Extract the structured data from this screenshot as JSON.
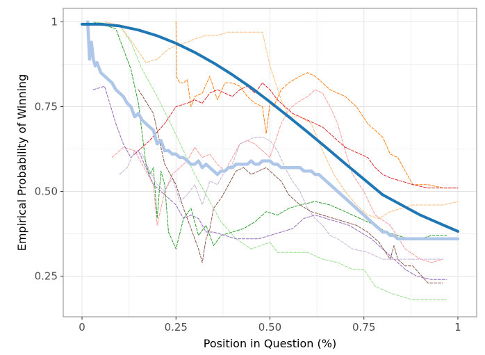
{
  "chart_data": {
    "type": "line",
    "xlabel": "Position in Question (%)",
    "ylabel": "Empirical Probability of Winning",
    "xlim": [
      -0.05,
      1.05
    ],
    "ylim": [
      0.13,
      1.04
    ],
    "xticks": [
      0,
      0.25,
      0.5,
      0.75,
      1
    ],
    "xtick_labels": [
      "0",
      "0.25",
      "0.50",
      "0.75",
      "1"
    ],
    "yticks": [
      0.25,
      0.5,
      0.75,
      1
    ],
    "ytick_labels": [
      "0.25",
      "0.50",
      "0.75",
      "1"
    ],
    "grid": true,
    "series": [
      {
        "style": "dashed",
        "color": "#2ca02c",
        "x": [
          0.03,
          0.09,
          0.13,
          0.15,
          0.17,
          0.18,
          0.19,
          0.2,
          0.21,
          0.22,
          0.23,
          0.25,
          0.27,
          0.29,
          0.31,
          0.33,
          0.35,
          0.37,
          0.4,
          0.43,
          0.46,
          0.49,
          0.52,
          0.55,
          0.58,
          0.62,
          0.66,
          0.7,
          0.74,
          0.78,
          0.81,
          0.84,
          0.87,
          0.9,
          0.93,
          0.97
        ],
        "y": [
          1.0,
          0.98,
          0.86,
          0.76,
          0.58,
          0.55,
          0.57,
          0.42,
          0.56,
          0.52,
          0.38,
          0.33,
          0.42,
          0.45,
          0.37,
          0.4,
          0.34,
          0.37,
          0.38,
          0.39,
          0.41,
          0.44,
          0.43,
          0.45,
          0.46,
          0.47,
          0.46,
          0.44,
          0.42,
          0.4,
          0.38,
          0.37,
          0.36,
          0.36,
          0.37,
          0.37
        ]
      },
      {
        "style": "dashed",
        "color": "#98df8a",
        "x": [
          0.03,
          0.1,
          0.13,
          0.16,
          0.2,
          0.24,
          0.27,
          0.3,
          0.34,
          0.37,
          0.41,
          0.45,
          0.5,
          0.52,
          0.56,
          0.6,
          0.64,
          0.68,
          0.72,
          0.75,
          0.78,
          0.82,
          0.85,
          0.88,
          0.9,
          0.92,
          0.95,
          0.97
        ],
        "y": [
          1.0,
          0.99,
          0.94,
          0.86,
          0.78,
          0.69,
          0.62,
          0.55,
          0.47,
          0.41,
          0.36,
          0.33,
          0.35,
          0.32,
          0.32,
          0.32,
          0.3,
          0.29,
          0.27,
          0.27,
          0.22,
          0.2,
          0.19,
          0.18,
          0.18,
          0.18,
          0.18,
          0.18
        ]
      },
      {
        "style": "dashed",
        "color": "#ffbb78",
        "x": [
          0.06,
          0.1,
          0.14,
          0.17,
          0.2,
          0.23,
          0.25,
          0.28,
          0.3,
          0.33,
          0.36,
          0.39,
          0.42,
          0.45,
          0.48,
          0.5,
          0.53,
          0.55,
          0.58,
          0.61,
          0.64,
          0.67,
          0.7,
          0.73,
          0.76,
          0.79,
          0.82,
          0.85,
          0.88,
          0.92,
          0.96,
          1.0
        ],
        "y": [
          1.0,
          0.99,
          0.93,
          0.88,
          0.89,
          0.92,
          0.93,
          0.94,
          0.95,
          0.96,
          0.96,
          0.97,
          0.97,
          0.97,
          0.97,
          0.87,
          0.77,
          0.72,
          0.72,
          0.7,
          0.62,
          0.55,
          0.5,
          0.46,
          0.43,
          0.42,
          0.44,
          0.45,
          0.46,
          0.46,
          0.46,
          0.47
        ]
      },
      {
        "style": "dashed",
        "color": "#ff7f0e",
        "x": [
          0.25,
          0.251,
          0.26,
          0.27,
          0.28,
          0.29,
          0.3,
          0.32,
          0.34,
          0.36,
          0.38,
          0.4,
          0.42,
          0.44,
          0.46,
          0.48,
          0.49,
          0.5,
          0.51,
          0.53,
          0.55,
          0.58,
          0.6,
          0.62,
          0.64,
          0.66,
          0.7,
          0.73,
          0.76,
          0.8,
          0.82,
          0.84,
          0.86,
          0.88,
          0.92,
          0.96,
          1.0
        ],
        "y": [
          1.0,
          0.84,
          0.82,
          0.82,
          0.83,
          0.75,
          0.78,
          0.79,
          0.84,
          0.77,
          0.82,
          0.82,
          0.81,
          0.78,
          0.76,
          0.75,
          0.67,
          0.76,
          0.75,
          0.8,
          0.82,
          0.84,
          0.85,
          0.84,
          0.82,
          0.8,
          0.78,
          0.75,
          0.7,
          0.66,
          0.61,
          0.6,
          0.56,
          0.52,
          0.52,
          0.51,
          0.51
        ]
      },
      {
        "style": "dashed",
        "color": "#ff9896",
        "x": [
          0.08,
          0.11,
          0.14,
          0.17,
          0.19,
          0.2,
          0.22,
          0.24,
          0.26,
          0.28,
          0.3,
          0.32,
          0.34,
          0.36,
          0.38,
          0.4,
          0.42,
          0.44,
          0.46,
          0.48,
          0.5,
          0.53,
          0.55,
          0.57,
          0.6,
          0.62,
          0.64,
          0.66,
          0.68,
          0.7,
          0.72,
          0.75,
          0.78,
          0.82,
          0.86,
          0.9,
          0.93,
          0.96
        ],
        "y": [
          0.6,
          0.63,
          0.62,
          0.56,
          0.52,
          0.4,
          0.5,
          0.55,
          0.57,
          0.59,
          0.63,
          0.6,
          0.61,
          0.58,
          0.56,
          0.6,
          0.64,
          0.65,
          0.64,
          0.62,
          0.6,
          0.7,
          0.74,
          0.76,
          0.78,
          0.8,
          0.79,
          0.75,
          0.7,
          0.62,
          0.55,
          0.5,
          0.43,
          0.4,
          0.33,
          0.3,
          0.29,
          0.3
        ]
      },
      {
        "style": "dashed",
        "color": "#d62728",
        "x": [
          0.14,
          0.18,
          0.22,
          0.25,
          0.28,
          0.3,
          0.32,
          0.34,
          0.36,
          0.38,
          0.4,
          0.42,
          0.44,
          0.46,
          0.48,
          0.5,
          0.52,
          0.54,
          0.56,
          0.58,
          0.6,
          0.62,
          0.64,
          0.66,
          0.68,
          0.7,
          0.72,
          0.74,
          0.76,
          0.78,
          0.8,
          0.82,
          0.85,
          0.88,
          0.92,
          0.96,
          1.0
        ],
        "y": [
          0.61,
          0.65,
          0.7,
          0.75,
          0.76,
          0.77,
          0.76,
          0.79,
          0.8,
          0.79,
          0.78,
          0.8,
          0.81,
          0.79,
          0.82,
          0.8,
          0.77,
          0.75,
          0.73,
          0.72,
          0.71,
          0.7,
          0.69,
          0.67,
          0.65,
          0.63,
          0.62,
          0.61,
          0.6,
          0.57,
          0.55,
          0.54,
          0.53,
          0.52,
          0.51,
          0.51,
          0.51
        ]
      },
      {
        "style": "dashed",
        "color": "#9467bd",
        "x": [
          0.03,
          0.06,
          0.09,
          0.11,
          0.13,
          0.15,
          0.17,
          0.19,
          0.21,
          0.23,
          0.25,
          0.27,
          0.29,
          0.31,
          0.33,
          0.35,
          0.38,
          0.41,
          0.44,
          0.47,
          0.5,
          0.53,
          0.56,
          0.59,
          0.62,
          0.65,
          0.68,
          0.71,
          0.74,
          0.77,
          0.8,
          0.83,
          0.86,
          0.89,
          0.93,
          0.97
        ],
        "y": [
          0.8,
          0.81,
          0.7,
          0.64,
          0.6,
          0.62,
          0.57,
          0.52,
          0.5,
          0.48,
          0.46,
          0.42,
          0.43,
          0.42,
          0.38,
          0.38,
          0.37,
          0.36,
          0.36,
          0.36,
          0.37,
          0.38,
          0.39,
          0.42,
          0.43,
          0.42,
          0.41,
          0.4,
          0.38,
          0.36,
          0.33,
          0.3,
          0.27,
          0.25,
          0.24,
          0.24
        ]
      },
      {
        "style": "dashed",
        "color": "#c5b0d5",
        "x": [
          0.1,
          0.12,
          0.14,
          0.16,
          0.18,
          0.2,
          0.22,
          0.24,
          0.26,
          0.28,
          0.3,
          0.32,
          0.34,
          0.36,
          0.38,
          0.4,
          0.42,
          0.44,
          0.46,
          0.48,
          0.5,
          0.52,
          0.54,
          0.56,
          0.58,
          0.6,
          0.62,
          0.64,
          0.66,
          0.68,
          0.72,
          0.76,
          0.8,
          0.84,
          0.88,
          0.92,
          0.96
        ],
        "y": [
          0.55,
          0.57,
          0.62,
          0.61,
          0.56,
          0.52,
          0.5,
          0.54,
          0.47,
          0.49,
          0.52,
          0.46,
          0.53,
          0.52,
          0.56,
          0.58,
          0.64,
          0.65,
          0.66,
          0.66,
          0.65,
          0.62,
          0.57,
          0.53,
          0.5,
          0.45,
          0.42,
          0.4,
          0.37,
          0.36,
          0.33,
          0.32,
          0.3,
          0.3,
          0.3,
          0.3,
          0.3
        ]
      },
      {
        "style": "dashed",
        "color": "#8c564b",
        "x": [
          0.15,
          0.19,
          0.22,
          0.25,
          0.27,
          0.29,
          0.31,
          0.32,
          0.33,
          0.34,
          0.35,
          0.37,
          0.39,
          0.41,
          0.43,
          0.45,
          0.47,
          0.49,
          0.51,
          0.53,
          0.55,
          0.58,
          0.61,
          0.64,
          0.67,
          0.7,
          0.73,
          0.76,
          0.79,
          0.82,
          0.83,
          0.84,
          0.86,
          0.88,
          0.92,
          0.96
        ],
        "y": [
          0.8,
          0.73,
          0.58,
          0.52,
          0.45,
          0.39,
          0.33,
          0.29,
          0.36,
          0.39,
          0.45,
          0.48,
          0.52,
          0.56,
          0.57,
          0.55,
          0.56,
          0.57,
          0.55,
          0.53,
          0.49,
          0.46,
          0.44,
          0.43,
          0.42,
          0.41,
          0.4,
          0.38,
          0.35,
          0.3,
          0.34,
          0.3,
          0.28,
          0.28,
          0.23,
          0.23
        ]
      },
      {
        "style": "solid-thick",
        "color": "#aec7e8",
        "x": [
          0.015,
          0.02,
          0.025,
          0.03,
          0.035,
          0.04,
          0.05,
          0.06,
          0.07,
          0.08,
          0.09,
          0.1,
          0.11,
          0.12,
          0.13,
          0.14,
          0.15,
          0.16,
          0.17,
          0.18,
          0.19,
          0.2,
          0.21,
          0.22,
          0.23,
          0.24,
          0.25,
          0.26,
          0.27,
          0.28,
          0.29,
          0.3,
          0.31,
          0.32,
          0.33,
          0.34,
          0.35,
          0.36,
          0.37,
          0.38,
          0.39,
          0.4,
          0.41,
          0.42,
          0.43,
          0.44,
          0.45,
          0.46,
          0.47,
          0.48,
          0.49,
          0.5,
          0.51,
          0.52,
          0.53,
          0.54,
          0.55,
          0.56,
          0.57,
          0.58,
          0.59,
          0.6,
          0.61,
          0.62,
          0.63,
          0.64,
          0.65,
          0.66,
          0.67,
          0.68,
          0.69,
          0.7,
          0.71,
          0.72,
          0.73,
          0.74,
          0.75,
          0.76,
          0.77,
          0.78,
          0.79,
          0.8,
          0.81,
          0.82,
          0.83,
          0.84,
          0.85,
          0.86,
          0.88,
          0.9,
          0.92,
          0.94,
          0.96,
          0.98,
          1.0
        ],
        "y": [
          1.0,
          0.89,
          0.94,
          0.89,
          0.87,
          0.88,
          0.85,
          0.84,
          0.83,
          0.82,
          0.8,
          0.79,
          0.78,
          0.76,
          0.75,
          0.72,
          0.73,
          0.71,
          0.7,
          0.69,
          0.68,
          0.64,
          0.65,
          0.62,
          0.62,
          0.61,
          0.61,
          0.6,
          0.6,
          0.59,
          0.58,
          0.58,
          0.59,
          0.57,
          0.58,
          0.57,
          0.56,
          0.55,
          0.56,
          0.56,
          0.57,
          0.57,
          0.58,
          0.58,
          0.58,
          0.58,
          0.59,
          0.58,
          0.58,
          0.59,
          0.59,
          0.59,
          0.58,
          0.58,
          0.57,
          0.57,
          0.57,
          0.57,
          0.57,
          0.57,
          0.56,
          0.56,
          0.56,
          0.55,
          0.55,
          0.54,
          0.53,
          0.52,
          0.51,
          0.5,
          0.49,
          0.48,
          0.47,
          0.46,
          0.45,
          0.44,
          0.43,
          0.42,
          0.41,
          0.4,
          0.39,
          0.38,
          0.38,
          0.37,
          0.37,
          0.36,
          0.36,
          0.36,
          0.36,
          0.36,
          0.36,
          0.36,
          0.36,
          0.36,
          0.36
        ]
      },
      {
        "style": "solid-thick",
        "color": "#1f77b4",
        "x": [
          0,
          0.05,
          0.1,
          0.15,
          0.2,
          0.25,
          0.3,
          0.35,
          0.4,
          0.45,
          0.5,
          0.55,
          0.6,
          0.65,
          0.7,
          0.75,
          0.8,
          0.85,
          0.9,
          0.95,
          1.0
        ],
        "y": [
          0.993,
          0.993,
          0.988,
          0.976,
          0.959,
          0.937,
          0.91,
          0.879,
          0.844,
          0.806,
          0.764,
          0.72,
          0.675,
          0.629,
          0.582,
          0.536,
          0.49,
          0.46,
          0.43,
          0.406,
          0.382
        ]
      }
    ]
  }
}
